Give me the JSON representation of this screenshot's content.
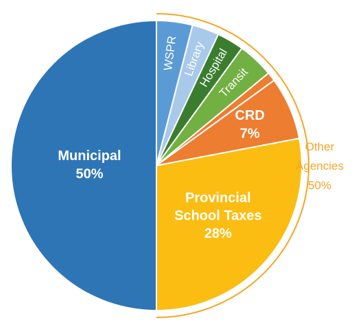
{
  "chart_data": {
    "type": "pie",
    "categories": [
      "WSPR",
      "Library",
      "Hospital",
      "Transit",
      null,
      "CRD",
      "Provincial School Taxes",
      "Municipal"
    ],
    "values": [
      4,
      3,
      3,
      4,
      1,
      7,
      28,
      50
    ],
    "value_labels": [
      null,
      null,
      null,
      null,
      null,
      "7%",
      "28%",
      "50%"
    ],
    "colors": [
      "#5b9bd5",
      "#a9c9ea",
      "#3b7d2e",
      "#72b043",
      "#ed7d31",
      "#ed7d31",
      "#fbbd12",
      "#2e75b6"
    ],
    "annotation": {
      "label": "Other Agencies",
      "value": 50,
      "value_label": "50%",
      "color": "#f5a623"
    }
  }
}
